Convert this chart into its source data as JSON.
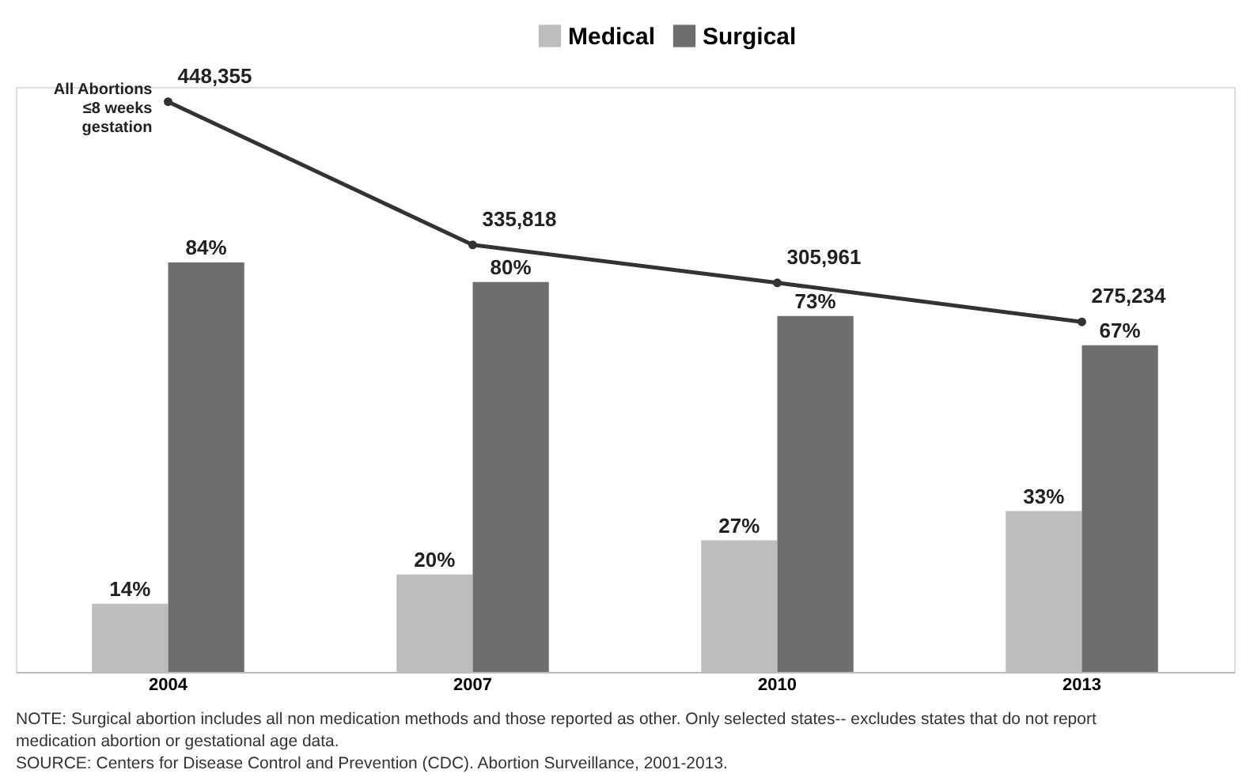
{
  "chart_data": {
    "type": "bar",
    "categories": [
      "2004",
      "2007",
      "2010",
      "2013"
    ],
    "series": [
      {
        "name": "Medical",
        "color": "#bdbdbd",
        "values": [
          14,
          20,
          27,
          33
        ],
        "value_labels": [
          "14%",
          "20%",
          "27%",
          "33%"
        ]
      },
      {
        "name": "Surgical",
        "color": "#6e6e6e",
        "values": [
          84,
          80,
          73,
          67
        ],
        "value_labels": [
          "84%",
          "80%",
          "73%",
          "67%"
        ]
      },
      {
        "name": "All Abortions ≤8 weeks gestation",
        "type": "line",
        "axis": "y2",
        "color": "#333333",
        "values": [
          448355,
          335818,
          305961,
          275234
        ],
        "value_labels": [
          "448,355",
          "335,818",
          "305,961",
          "275,234"
        ]
      }
    ],
    "ylim": [
      0,
      120
    ],
    "y2lim": [
      0,
      460000
    ],
    "tick_labels": "x",
    "legend": "top",
    "marker": "circle",
    "grid": false,
    "annotations": [
      "NOTE: Surgical abortion includes all non medication methods and those reported as other. Only selected states-- excludes states that do not report medication abortion or gestational age data.",
      "SOURCE: Centers for Disease Control and Prevention (CDC). Abortion Surveillance, 2001-2013."
    ]
  }
}
